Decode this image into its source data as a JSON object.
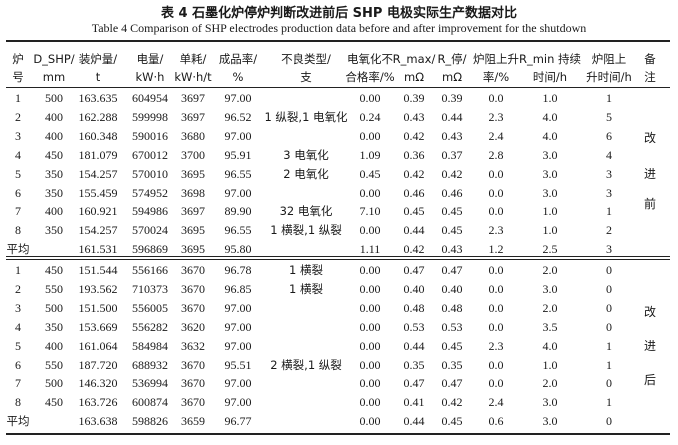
{
  "caption": {
    "cn": "表 4   石墨化炉停炉判断改进前后 SHP 电极实际生产数据对比",
    "en": "Table 4   Comparison of SHP electrodes production data before and after improvement for the shutdown"
  },
  "header": {
    "row1": [
      "炉",
      "D_SHP/",
      "装炉量/",
      "电量/",
      "单耗/",
      "成品率/",
      "不良类型/",
      "电氧化不",
      "R_max/",
      "R_停/",
      "炉阻上升",
      "R_min 持续",
      "炉阻上",
      "备"
    ],
    "row2": [
      "号",
      "mm",
      "t",
      "kW·h",
      "kW·h/t",
      "%",
      "支",
      "合格率/%",
      "mΩ",
      "mΩ",
      "率/%",
      "时间/h",
      "升时间/h",
      "注"
    ]
  },
  "groups": [
    {
      "note": [
        "改",
        "进",
        "前"
      ],
      "rows": [
        [
          "1",
          "500",
          "163.635",
          "604954",
          "3697",
          "97.00",
          "",
          "0.00",
          "0.39",
          "0.39",
          "0.0",
          "1.0",
          "1"
        ],
        [
          "2",
          "400",
          "162.288",
          "599998",
          "3697",
          "96.52",
          "1 纵裂,1 电氧化",
          "0.24",
          "0.43",
          "0.44",
          "2.3",
          "4.0",
          "5"
        ],
        [
          "3",
          "400",
          "160.348",
          "590016",
          "3680",
          "97.00",
          "",
          "0.00",
          "0.42",
          "0.43",
          "2.4",
          "4.0",
          "6"
        ],
        [
          "4",
          "450",
          "181.079",
          "670012",
          "3700",
          "95.91",
          "3 电氧化",
          "1.09",
          "0.36",
          "0.37",
          "2.8",
          "3.0",
          "4"
        ],
        [
          "5",
          "350",
          "154.257",
          "570010",
          "3695",
          "96.55",
          "2 电氧化",
          "0.45",
          "0.42",
          "0.42",
          "0.0",
          "3.0",
          "3"
        ],
        [
          "6",
          "350",
          "155.459",
          "574952",
          "3698",
          "97.00",
          "",
          "0.00",
          "0.46",
          "0.46",
          "0.0",
          "3.0",
          "3"
        ],
        [
          "7",
          "400",
          "160.921",
          "594986",
          "3697",
          "89.90",
          "32 电氧化",
          "7.10",
          "0.45",
          "0.45",
          "0.0",
          "1.0",
          "1"
        ],
        [
          "8",
          "350",
          "154.257",
          "570024",
          "3695",
          "96.55",
          "1 横裂,1 纵裂",
          "0.00",
          "0.44",
          "0.45",
          "2.3",
          "1.0",
          "2"
        ]
      ],
      "avg": [
        "平均",
        "",
        "161.531",
        "596869",
        "3695",
        "95.80",
        "",
        "1.11",
        "0.42",
        "0.43",
        "1.2",
        "2.5",
        "3"
      ]
    },
    {
      "note": [
        "改",
        "进",
        "后"
      ],
      "rows": [
        [
          "1",
          "450",
          "151.544",
          "556166",
          "3670",
          "96.78",
          "1 横裂",
          "0.00",
          "0.47",
          "0.47",
          "0.0",
          "2.0",
          "0"
        ],
        [
          "2",
          "550",
          "193.562",
          "710373",
          "3670",
          "96.85",
          "1 横裂",
          "0.00",
          "0.40",
          "0.40",
          "0.0",
          "3.0",
          "0"
        ],
        [
          "3",
          "500",
          "151.500",
          "556005",
          "3670",
          "97.00",
          "",
          "0.00",
          "0.48",
          "0.48",
          "0.0",
          "2.0",
          "0"
        ],
        [
          "4",
          "350",
          "153.669",
          "556282",
          "3620",
          "97.00",
          "",
          "0.00",
          "0.53",
          "0.53",
          "0.0",
          "3.5",
          "0"
        ],
        [
          "5",
          "400",
          "161.064",
          "584984",
          "3632",
          "97.00",
          "",
          "0.00",
          "0.44",
          "0.45",
          "2.3",
          "4.0",
          "1"
        ],
        [
          "6",
          "550",
          "187.720",
          "688932",
          "3670",
          "95.51",
          "2 横裂,1 纵裂",
          "0.00",
          "0.35",
          "0.35",
          "0.0",
          "1.0",
          "1"
        ],
        [
          "7",
          "500",
          "146.320",
          "536994",
          "3670",
          "97.00",
          "",
          "0.00",
          "0.47",
          "0.47",
          "0.0",
          "2.0",
          "0"
        ],
        [
          "8",
          "450",
          "163.726",
          "600874",
          "3670",
          "97.00",
          "",
          "0.00",
          "0.41",
          "0.42",
          "2.4",
          "3.0",
          "1"
        ]
      ],
      "avg": [
        "平均",
        "",
        "163.638",
        "598826",
        "3659",
        "96.77",
        "",
        "0.00",
        "0.44",
        "0.45",
        "0.6",
        "3.0",
        "0"
      ]
    }
  ]
}
